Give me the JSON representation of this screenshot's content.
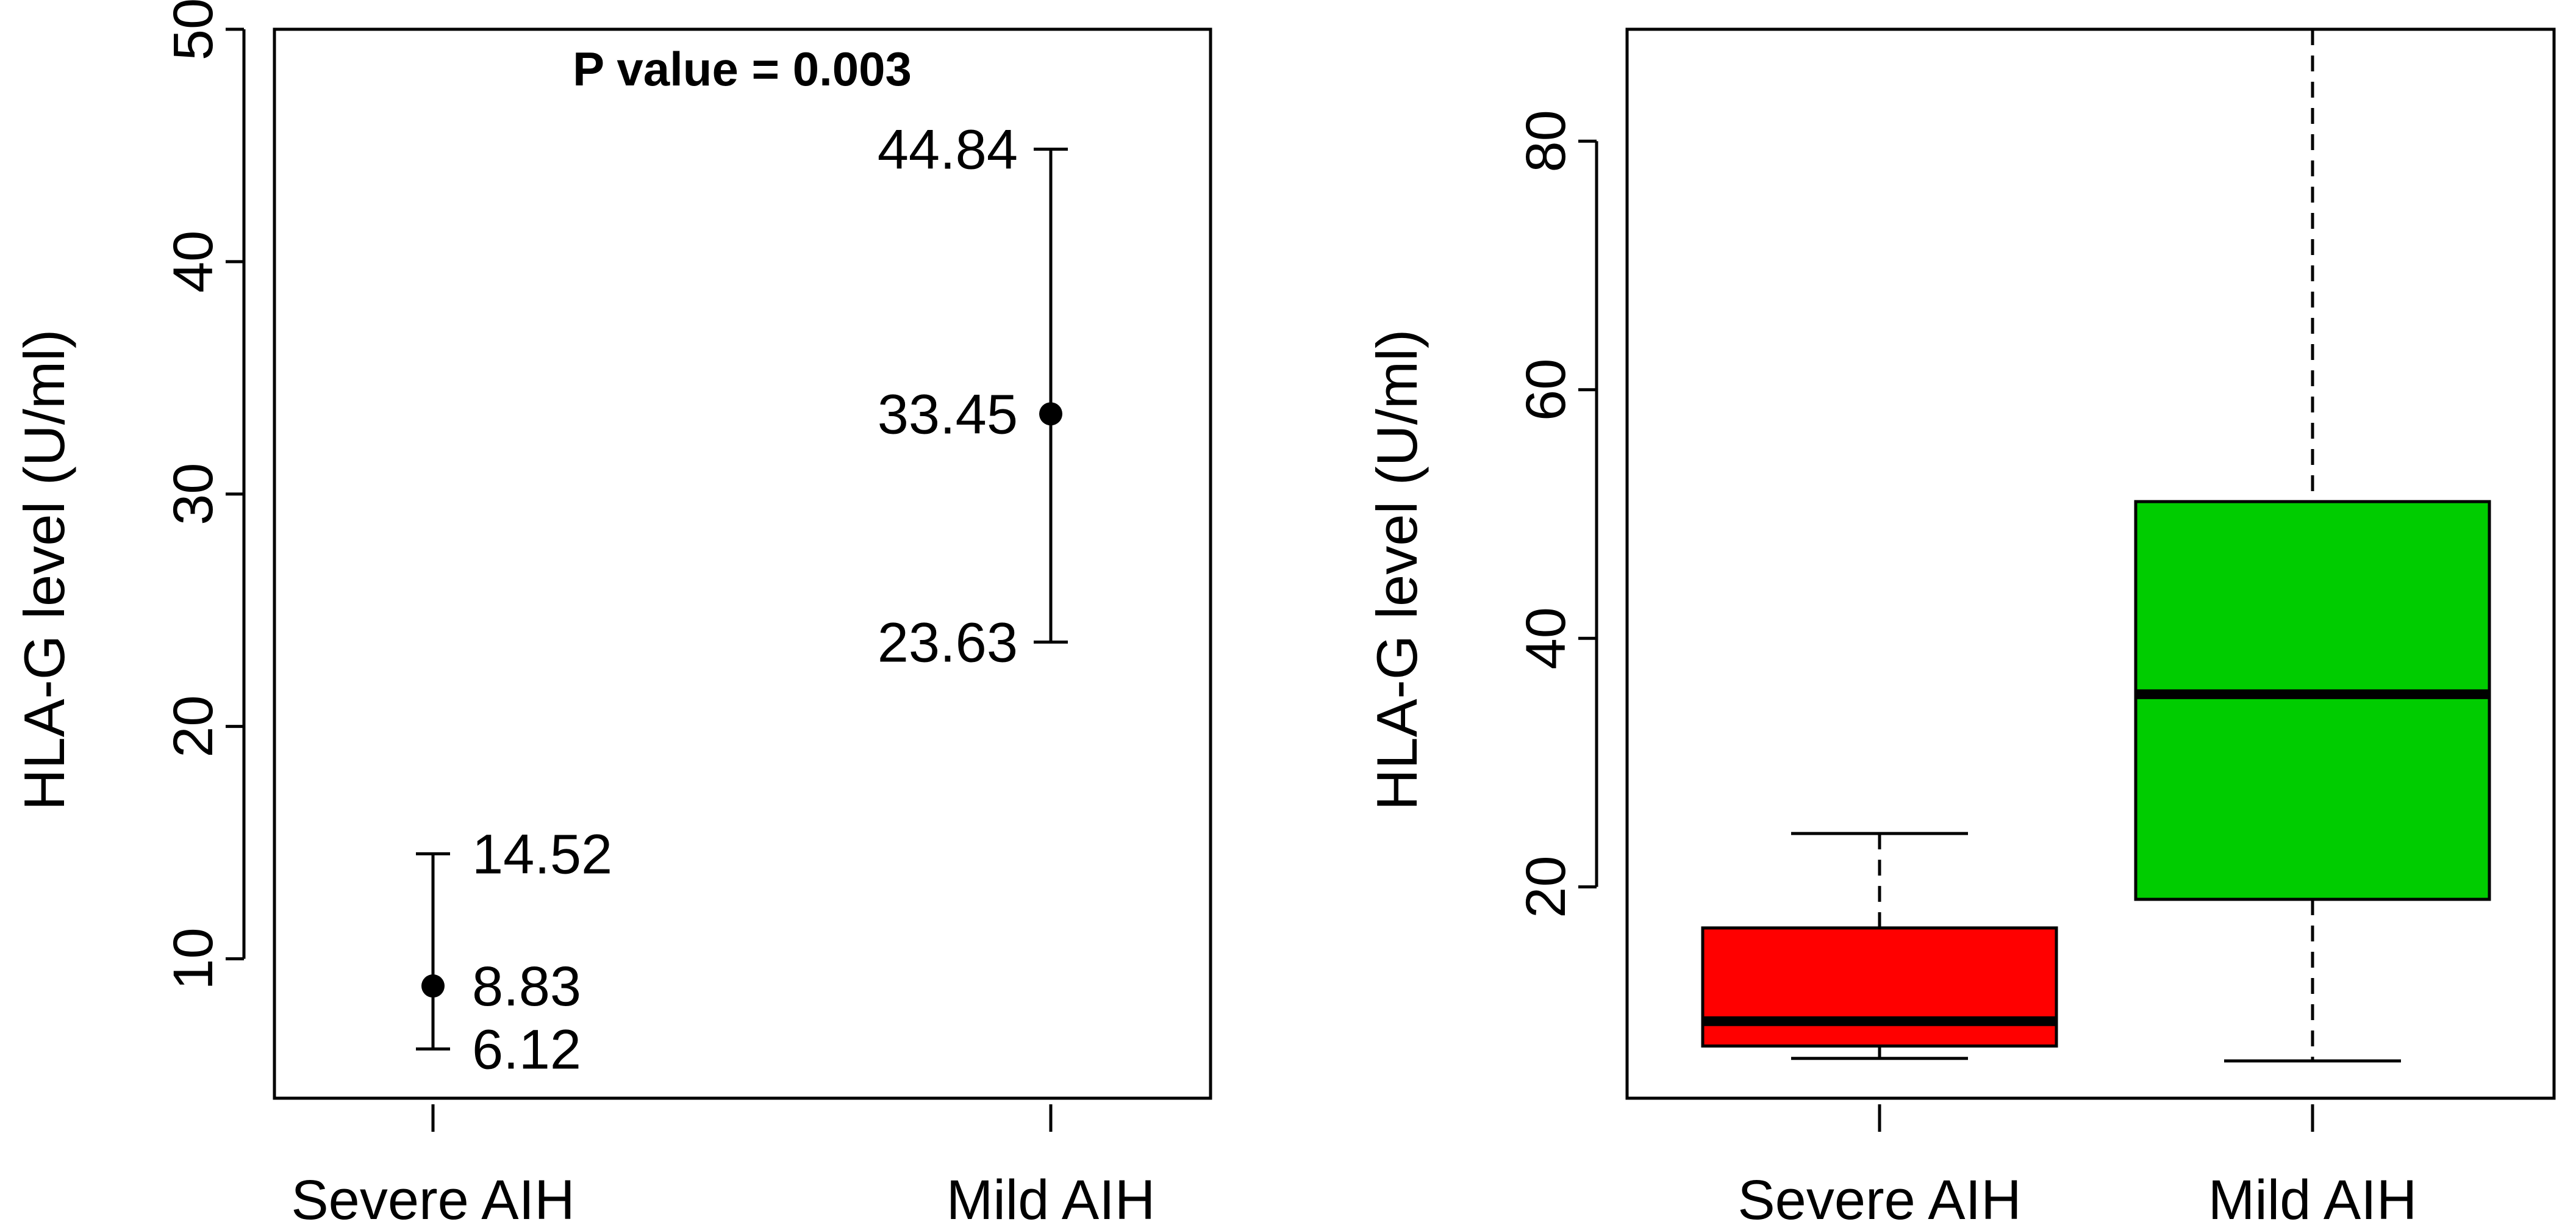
{
  "chart_data": [
    {
      "type": "errorbar",
      "ylabel": "HLA-G level (U/ml)",
      "annotation": "P value = 0.003",
      "categories": [
        "Severe AIH",
        "Mild AIH"
      ],
      "ylim": [
        4,
        50
      ],
      "y_ticks": [
        10,
        20,
        30,
        40,
        50
      ],
      "points": [
        {
          "category": "Severe AIH",
          "mean": 8.83,
          "lower": 6.12,
          "upper": 14.52,
          "mean_label": "8.83",
          "lower_label": "6.12",
          "upper_label": "14.52"
        },
        {
          "category": "Mild AIH",
          "mean": 33.45,
          "lower": 23.63,
          "upper": 44.84,
          "mean_label": "33.45",
          "lower_label": "23.63",
          "upper_label": "44.84"
        }
      ]
    },
    {
      "type": "box",
      "ylabel": "HLA-G level (U/ml)",
      "categories": [
        "Severe AIH",
        "Mild AIH"
      ],
      "ylim": [
        3,
        89
      ],
      "y_ticks": [
        20,
        40,
        60,
        80
      ],
      "boxes": [
        {
          "category": "Severe AIH",
          "min": 6.2,
          "q1": 7.2,
          "median": 9.2,
          "q3": 16.7,
          "max": 24.3,
          "color": "#ff0000"
        },
        {
          "category": "Mild AIH",
          "min": 6.0,
          "q1": 19.0,
          "median": 35.5,
          "q3": 51.0,
          "max": 89.0,
          "color": "#00cc00"
        }
      ]
    }
  ]
}
